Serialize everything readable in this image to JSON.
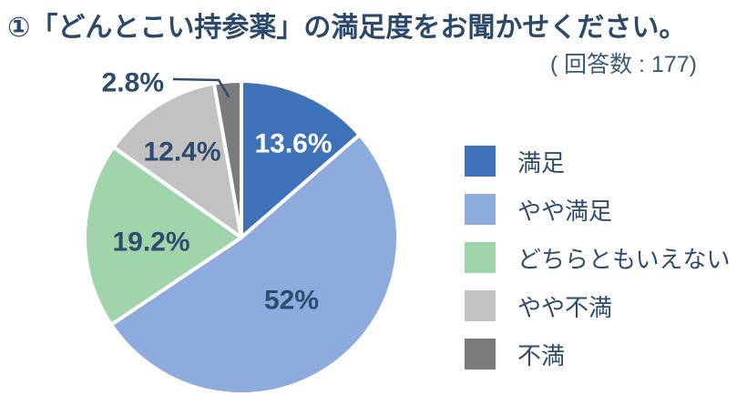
{
  "header": {
    "title": "①「どんとこい持参薬」の満足度をお聞かせください。",
    "respondents": "( 回答数 : 177)"
  },
  "colors": {
    "background": "#FFFFFF",
    "text": "#2E4D6E",
    "title_text": "#2B4A6B",
    "leader_line": "#2E4D6E"
  },
  "chart_data": {
    "type": "pie",
    "title": "「どんとこい持参薬」の満足度",
    "respondents": 177,
    "start_angle_deg": 0,
    "direction": "clockwise",
    "legend_position": "right",
    "categories": [
      "満足",
      "やや満足",
      "どちらともいえない",
      "やや不満",
      "不満"
    ],
    "values": [
      13.6,
      52,
      19.2,
      12.4,
      2.8
    ],
    "slices": [
      {
        "label": "満足",
        "value_pct": 13.6,
        "display": "13.6%",
        "color": "#3E72B8",
        "label_color": "#FFFFFF",
        "label_inside": true
      },
      {
        "label": "やや満足",
        "value_pct": 52,
        "display": "52%",
        "color": "#8DABDD",
        "label_color": "#2E4D6E",
        "label_inside": true
      },
      {
        "label": "どちらともいえない",
        "value_pct": 19.2,
        "display": "19.2%",
        "color": "#A0D4AA",
        "label_color": "#2E4D6E",
        "label_inside": true
      },
      {
        "label": "やや不満",
        "value_pct": 12.4,
        "display": "12.4%",
        "color": "#C2C2C2",
        "label_color": "#2E4D6E",
        "label_inside": true
      },
      {
        "label": "不満",
        "value_pct": 2.8,
        "display": "2.8%",
        "color": "#7B7B7B",
        "label_color": "#2E4D6E",
        "label_inside": false
      }
    ]
  }
}
